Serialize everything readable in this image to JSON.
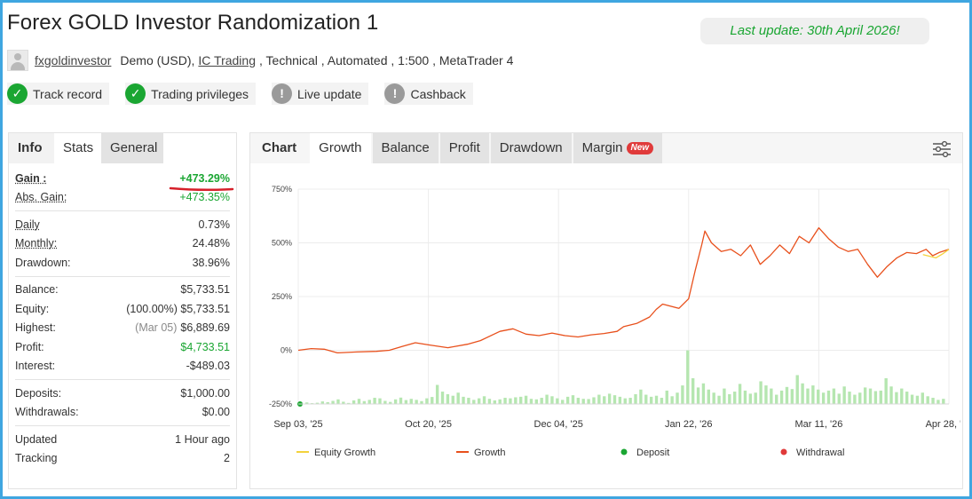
{
  "header": {
    "title": "Forex GOLD Investor Randomization 1",
    "last_update": "Last update: 30th April 2026!"
  },
  "meta": {
    "username": "fxgoldinvestor",
    "account_type": "Demo (USD),",
    "broker": "IC Trading",
    "rest": ", Technical , Automated , 1:500 , MetaTrader 4"
  },
  "badges": [
    {
      "label": "Track record",
      "status": "verified",
      "icon": "check-icon"
    },
    {
      "label": "Trading privileges",
      "status": "verified",
      "icon": "check-icon"
    },
    {
      "label": "Live update",
      "status": "unverified",
      "icon": "exclamation-icon"
    },
    {
      "label": "Cashback",
      "status": "unverified",
      "icon": "exclamation-icon"
    }
  ],
  "left_tabs": {
    "info": "Info",
    "stats": "Stats",
    "general": "General"
  },
  "stats": {
    "gain": {
      "label": "Gain :",
      "value": "+473.29%"
    },
    "abs_gain": {
      "label": "Abs. Gain:",
      "value": "+473.35%"
    },
    "daily": {
      "label": "Daily",
      "value": "0.73%"
    },
    "monthly": {
      "label": "Monthly:",
      "value": "24.48%"
    },
    "drawdown": {
      "label": "Drawdown:",
      "value": "38.96%"
    },
    "balance": {
      "label": "Balance:",
      "value": "$5,733.51"
    },
    "equity": {
      "label": "Equity:",
      "note": "(100.00%)",
      "value": "$5,733.51"
    },
    "highest": {
      "label": "Highest:",
      "note": "(Mar 05)",
      "value": "$6,889.69"
    },
    "profit": {
      "label": "Profit:",
      "value": "$4,733.51"
    },
    "interest": {
      "label": "Interest:",
      "value": "-$489.03"
    },
    "deposits": {
      "label": "Deposits:",
      "value": "$1,000.00"
    },
    "withdrawals": {
      "label": "Withdrawals:",
      "value": "$0.00"
    },
    "updated": {
      "label": "Updated",
      "value": "1 Hour ago"
    },
    "tracking": {
      "label": "Tracking",
      "value": "2"
    }
  },
  "chart_tabs": {
    "chart": "Chart",
    "growth": "Growth",
    "balance": "Balance",
    "profit": "Profit",
    "drawdown": "Drawdown",
    "margin": "Margin",
    "new": "New"
  },
  "colors": {
    "accent": "#1aa632",
    "growth_line": "#e8501c",
    "equity_line": "#f3d23c",
    "bars": "#b5e6b0",
    "deposit": "#1aa632",
    "withdrawal": "#e03a3a",
    "frame": "#3fa6e0"
  },
  "chart_data": {
    "type": "line",
    "title": "",
    "xlabel": "",
    "ylabel": "",
    "ylim": [
      -250,
      750
    ],
    "y_ticks": [
      "750%",
      "500%",
      "250%",
      "0%",
      "-250%"
    ],
    "y_tick_values": [
      750,
      500,
      250,
      0,
      -250
    ],
    "x_ticks": [
      "Sep 03, '25",
      "Oct 20, '25",
      "Dec 04, '25",
      "Jan 22, '26",
      "Mar 11, '26",
      "Apr 28, '26"
    ],
    "grid": true,
    "legend_position": "bottom",
    "legend": [
      "Equity Growth",
      "Growth",
      "Deposit",
      "Withdrawal"
    ],
    "series": [
      {
        "name": "Growth",
        "points": [
          [
            0,
            0
          ],
          [
            0.02,
            8
          ],
          [
            0.04,
            5
          ],
          [
            0.06,
            -12
          ],
          [
            0.09,
            -8
          ],
          [
            0.12,
            -5
          ],
          [
            0.14,
            0
          ],
          [
            0.16,
            18
          ],
          [
            0.18,
            35
          ],
          [
            0.2,
            25
          ],
          [
            0.23,
            12
          ],
          [
            0.26,
            28
          ],
          [
            0.28,
            45
          ],
          [
            0.31,
            88
          ],
          [
            0.33,
            100
          ],
          [
            0.35,
            75
          ],
          [
            0.37,
            68
          ],
          [
            0.39,
            80
          ],
          [
            0.41,
            68
          ],
          [
            0.43,
            62
          ],
          [
            0.45,
            72
          ],
          [
            0.47,
            78
          ],
          [
            0.49,
            88
          ],
          [
            0.5,
            110
          ],
          [
            0.52,
            125
          ],
          [
            0.54,
            155
          ],
          [
            0.55,
            190
          ],
          [
            0.56,
            215
          ],
          [
            0.585,
            195
          ],
          [
            0.6,
            240
          ],
          [
            0.61,
            370
          ],
          [
            0.62,
            490
          ],
          [
            0.625,
            555
          ],
          [
            0.635,
            500
          ],
          [
            0.65,
            460
          ],
          [
            0.665,
            470
          ],
          [
            0.68,
            440
          ],
          [
            0.695,
            490
          ],
          [
            0.71,
            400
          ],
          [
            0.725,
            440
          ],
          [
            0.74,
            490
          ],
          [
            0.755,
            450
          ],
          [
            0.77,
            530
          ],
          [
            0.785,
            500
          ],
          [
            0.8,
            570
          ],
          [
            0.815,
            520
          ],
          [
            0.83,
            480
          ],
          [
            0.845,
            460
          ],
          [
            0.86,
            470
          ],
          [
            0.875,
            400
          ],
          [
            0.89,
            340
          ],
          [
            0.905,
            390
          ],
          [
            0.92,
            430
          ],
          [
            0.935,
            455
          ],
          [
            0.95,
            450
          ],
          [
            0.965,
            470
          ],
          [
            0.975,
            440
          ],
          [
            0.985,
            455
          ],
          [
            1,
            470
          ]
        ]
      },
      {
        "name": "Equity Growth",
        "points": [
          [
            0.96,
            445
          ],
          [
            0.98,
            430
          ],
          [
            0.99,
            448
          ],
          [
            1,
            470
          ]
        ]
      }
    ],
    "bars": [
      15,
      8,
      12,
      25,
      18,
      30,
      45,
      22,
      10,
      35,
      50,
      28,
      40,
      60,
      55,
      30,
      20,
      45,
      62,
      38,
      50,
      40,
      28,
      55,
      68,
      185,
      120,
      95,
      80,
      110,
      70,
      60,
      40,
      55,
      75,
      50,
      35,
      45,
      60,
      55,
      65,
      70,
      80,
      50,
      45,
      60,
      90,
      75,
      55,
      40,
      70,
      85,
      60,
      50,
      48,
      65,
      90,
      75,
      100,
      85,
      70,
      55,
      60,
      95,
      140,
      90,
      70,
      80,
      60,
      130,
      75,
      110,
      180,
      520,
      250,
      160,
      200,
      140,
      110,
      80,
      150,
      95,
      120,
      195,
      130,
      100,
      110,
      220,
      180,
      150,
      90,
      130,
      165,
      145,
      280,
      200,
      150,
      180,
      140,
      110,
      130,
      150,
      100,
      170,
      120,
      90,
      110,
      160,
      150,
      125,
      130,
      250,
      170,
      115,
      150,
      120,
      90,
      80,
      110,
      75,
      60,
      40,
      50
    ]
  }
}
